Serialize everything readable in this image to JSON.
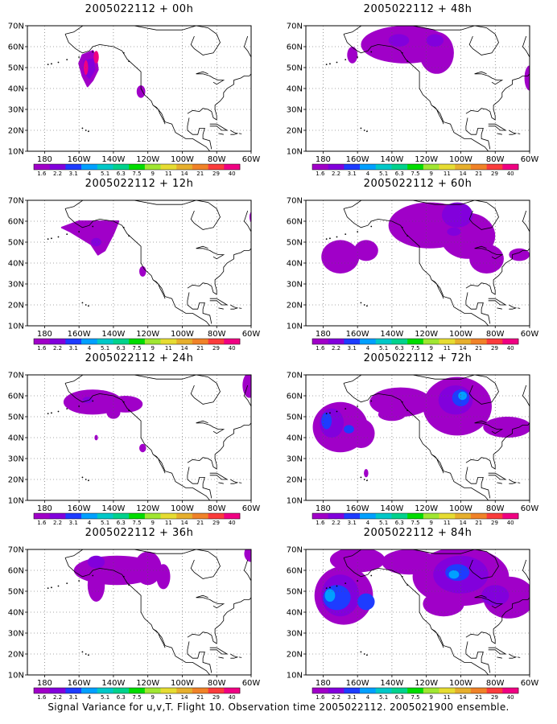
{
  "caption": "Signal Variance for u,v,T. Flight 10. Observation time 2005022112. 2005021900 ensemble.",
  "colorbar": {
    "labels": [
      "1.6",
      "2.2",
      "3.1",
      "4",
      "5.1",
      "6.3",
      "7.5",
      "9",
      "11",
      "14",
      "21",
      "29",
      "40"
    ],
    "colors": [
      "#a000c8",
      "#8200dc",
      "#1e3cff",
      "#00a0ff",
      "#00c8c8",
      "#00d28c",
      "#00dc00",
      "#a0e632",
      "#e6dc32",
      "#e6af2d",
      "#f08228",
      "#fa3c3c",
      "#f00082"
    ]
  },
  "axes": {
    "lat_labels": [
      "70N",
      "60N",
      "50N",
      "40N",
      "30N",
      "20N",
      "10N"
    ],
    "lon_labels": [
      "180",
      "160W",
      "140W",
      "120W",
      "100W",
      "80W",
      "60W"
    ]
  },
  "panels": [
    {
      "title": "2005022112 + 00h",
      "blobs": [
        {
          "shape": "poly",
          "color": "#a000c8",
          "pts": [
            [
              -158,
              56
            ],
            [
              -152,
              58
            ],
            [
              -150,
              55
            ],
            [
              -149,
              49
            ],
            [
              -152,
              44
            ],
            [
              -155,
              41
            ],
            [
              -158,
              46
            ],
            [
              -160,
              52
            ]
          ]
        },
        {
          "shape": "poly",
          "color": "#8200dc",
          "pts": [
            [
              -157,
              53
            ],
            [
              -152,
              54
            ],
            [
              -151,
              49
            ],
            [
              -154,
              45
            ],
            [
              -157,
              48
            ]
          ]
        },
        {
          "shape": "ell",
          "color": "#a000c8",
          "lon": -124,
          "lat": 38.5,
          "rx": 2.5,
          "ry": 3
        },
        {
          "shape": "ell",
          "color": "#f00082",
          "lon": -150,
          "lat": 55,
          "rx": 1.5,
          "ry": 3
        },
        {
          "shape": "ell",
          "color": "#f00082",
          "lon": -156,
          "lat": 50,
          "rx": 1.3,
          "ry": 3.5
        }
      ]
    },
    {
      "title": "2005022112 + 48h",
      "blobs": [
        {
          "shape": "ell",
          "color": "#a000c8",
          "lon": -132,
          "lat": 61,
          "rx": 26,
          "ry": 9
        },
        {
          "shape": "ell",
          "color": "#a000c8",
          "lon": -114,
          "lat": 57,
          "rx": 10,
          "ry": 10
        },
        {
          "shape": "ell",
          "color": "#a000c8",
          "lon": -163,
          "lat": 56,
          "rx": 3,
          "ry": 4
        },
        {
          "shape": "ell",
          "color": "#a000c8",
          "lon": -60,
          "lat": 45,
          "rx": 3,
          "ry": 6
        },
        {
          "shape": "ell",
          "color": "#8200dc",
          "lon": -136,
          "lat": 63,
          "rx": 6,
          "ry": 3
        },
        {
          "shape": "ell",
          "color": "#8200dc",
          "lon": -115,
          "lat": 63,
          "rx": 5,
          "ry": 3
        }
      ]
    },
    {
      "title": "2005022112 + 12h",
      "blobs": [
        {
          "shape": "poly",
          "color": "#a000c8",
          "pts": [
            [
              -170,
              57
            ],
            [
              -160,
              60
            ],
            [
              -150,
              60
            ],
            [
              -137,
              60
            ],
            [
              -140,
              54
            ],
            [
              -145,
              46
            ],
            [
              -149,
              44
            ],
            [
              -153,
              49
            ],
            [
              -165,
              55
            ]
          ]
        },
        {
          "shape": "ell",
          "color": "#8200dc",
          "lon": -150,
          "lat": 50,
          "rx": 3,
          "ry": 2
        },
        {
          "shape": "ell",
          "color": "#a000c8",
          "lon": -123,
          "lat": 36,
          "rx": 2,
          "ry": 2.5
        },
        {
          "shape": "ell",
          "color": "#a000c8",
          "lon": -59,
          "lat": 62,
          "rx": 2,
          "ry": 3
        }
      ]
    },
    {
      "title": "2005022112 + 60h",
      "blobs": [
        {
          "shape": "ell",
          "color": "#a000c8",
          "lon": -118,
          "lat": 58,
          "rx": 24,
          "ry": 11
        },
        {
          "shape": "ell",
          "color": "#a000c8",
          "lon": -96,
          "lat": 53,
          "rx": 16,
          "ry": 11
        },
        {
          "shape": "ell",
          "color": "#a000c8",
          "lon": -85,
          "lat": 42,
          "rx": 10,
          "ry": 7
        },
        {
          "shape": "ell",
          "color": "#a000c8",
          "lon": -170,
          "lat": 43,
          "rx": 11,
          "ry": 8
        },
        {
          "shape": "ell",
          "color": "#a000c8",
          "lon": -155,
          "lat": 46,
          "rx": 7,
          "ry": 5
        },
        {
          "shape": "ell",
          "color": "#a000c8",
          "lon": -66,
          "lat": 44,
          "rx": 6,
          "ry": 3
        },
        {
          "shape": "ell",
          "color": "#8200dc",
          "lon": -102,
          "lat": 63,
          "rx": 9,
          "ry": 6
        },
        {
          "shape": "ell",
          "color": "#8200dc",
          "lon": -104,
          "lat": 55,
          "rx": 4,
          "ry": 2
        }
      ]
    },
    {
      "title": "2005022112 + 24h",
      "blobs": [
        {
          "shape": "ell",
          "color": "#a000c8",
          "lon": -152,
          "lat": 57,
          "rx": 17,
          "ry": 6
        },
        {
          "shape": "ell",
          "color": "#a000c8",
          "lon": -133,
          "lat": 56,
          "rx": 10,
          "ry": 4
        },
        {
          "shape": "ell",
          "color": "#a000c8",
          "lon": -140,
          "lat": 52,
          "rx": 4,
          "ry": 3
        },
        {
          "shape": "ell",
          "color": "#a000c8",
          "lon": -150,
          "lat": 40,
          "rx": 1,
          "ry": 1.3
        },
        {
          "shape": "ell",
          "color": "#a000c8",
          "lon": -123,
          "lat": 35,
          "rx": 2,
          "ry": 2
        },
        {
          "shape": "ell",
          "color": "#a000c8",
          "lon": -61,
          "lat": 65,
          "rx": 4,
          "ry": 6
        },
        {
          "shape": "ell",
          "color": "#8200dc",
          "lon": -155,
          "lat": 58,
          "rx": 3,
          "ry": 1.5
        }
      ]
    },
    {
      "title": "2005022112 + 72h",
      "blobs": [
        {
          "shape": "ell",
          "color": "#a000c8",
          "lon": -102,
          "lat": 55,
          "rx": 20,
          "ry": 14
        },
        {
          "shape": "ell",
          "color": "#a000c8",
          "lon": -135,
          "lat": 57,
          "rx": 18,
          "ry": 7
        },
        {
          "shape": "ell",
          "color": "#a000c8",
          "lon": -170,
          "lat": 45,
          "rx": 16,
          "ry": 12
        },
        {
          "shape": "ell",
          "color": "#a000c8",
          "lon": -158,
          "lat": 42,
          "rx": 8,
          "ry": 7
        },
        {
          "shape": "ell",
          "color": "#a000c8",
          "lon": -73,
          "lat": 45,
          "rx": 14,
          "ry": 5
        },
        {
          "shape": "ell",
          "color": "#a000c8",
          "lon": -140,
          "lat": 51,
          "rx": 8,
          "ry": 3
        },
        {
          "shape": "ell",
          "color": "#a000c8",
          "lon": -155,
          "lat": 23,
          "rx": 1.3,
          "ry": 2
        },
        {
          "shape": "ell",
          "color": "#8200dc",
          "lon": -103,
          "lat": 58,
          "rx": 10,
          "ry": 7
        },
        {
          "shape": "ell",
          "color": "#8200dc",
          "lon": -175,
          "lat": 47,
          "rx": 7,
          "ry": 7
        },
        {
          "shape": "ell",
          "color": "#1e3cff",
          "lon": -100,
          "lat": 59,
          "rx": 5,
          "ry": 4
        },
        {
          "shape": "ell",
          "color": "#1e3cff",
          "lon": -178,
          "lat": 48,
          "rx": 3,
          "ry": 4
        },
        {
          "shape": "ell",
          "color": "#1e3cff",
          "lon": -165,
          "lat": 44,
          "rx": 3,
          "ry": 2
        },
        {
          "shape": "ell",
          "color": "#00a0ff",
          "lon": -99,
          "lat": 60,
          "rx": 2.5,
          "ry": 2
        }
      ]
    },
    {
      "title": "2005022112 + 36h",
      "blobs": [
        {
          "shape": "ell",
          "color": "#a000c8",
          "lon": -138,
          "lat": 60,
          "rx": 25,
          "ry": 7
        },
        {
          "shape": "ell",
          "color": "#a000c8",
          "lon": -150,
          "lat": 53,
          "rx": 5,
          "ry": 8
        },
        {
          "shape": "ell",
          "color": "#a000c8",
          "lon": -120,
          "lat": 61,
          "rx": 8,
          "ry": 8
        },
        {
          "shape": "ell",
          "color": "#a000c8",
          "lon": -111,
          "lat": 57,
          "rx": 4,
          "ry": 6
        },
        {
          "shape": "ell",
          "color": "#a000c8",
          "lon": -60,
          "lat": 68,
          "rx": 4,
          "ry": 4
        },
        {
          "shape": "ell",
          "color": "#8200dc",
          "lon": -150,
          "lat": 64,
          "rx": 5,
          "ry": 3
        }
      ]
    },
    {
      "title": "2005022112 + 84h",
      "blobs": [
        {
          "shape": "ell",
          "color": "#a000c8",
          "lon": -100,
          "lat": 57,
          "rx": 28,
          "ry": 14
        },
        {
          "shape": "ell",
          "color": "#a000c8",
          "lon": -130,
          "lat": 64,
          "rx": 16,
          "ry": 6
        },
        {
          "shape": "ell",
          "color": "#a000c8",
          "lon": -168,
          "lat": 48,
          "rx": 17,
          "ry": 14
        },
        {
          "shape": "ell",
          "color": "#a000c8",
          "lon": -72,
          "lat": 47,
          "rx": 15,
          "ry": 10
        },
        {
          "shape": "ell",
          "color": "#a000c8",
          "lon": -160,
          "lat": 65,
          "rx": 16,
          "ry": 6
        },
        {
          "shape": "ell",
          "color": "#a000c8",
          "lon": -110,
          "lat": 44,
          "rx": 12,
          "ry": 6
        },
        {
          "shape": "ell",
          "color": "#8200dc",
          "lon": -100,
          "lat": 58,
          "rx": 16,
          "ry": 9
        },
        {
          "shape": "ell",
          "color": "#8200dc",
          "lon": -170,
          "lat": 48,
          "rx": 11,
          "ry": 10
        },
        {
          "shape": "ell",
          "color": "#8200dc",
          "lon": -80,
          "lat": 48,
          "rx": 8,
          "ry": 5
        },
        {
          "shape": "ell",
          "color": "#1e3cff",
          "lon": -172,
          "lat": 47,
          "rx": 8,
          "ry": 6
        },
        {
          "shape": "ell",
          "color": "#1e3cff",
          "lon": -155,
          "lat": 45,
          "rx": 5,
          "ry": 4
        },
        {
          "shape": "ell",
          "color": "#1e3cff",
          "lon": -102,
          "lat": 59,
          "rx": 7,
          "ry": 4
        },
        {
          "shape": "ell",
          "color": "#00a0ff",
          "lon": -176,
          "lat": 48,
          "rx": 3,
          "ry": 3
        },
        {
          "shape": "ell",
          "color": "#00a0ff",
          "lon": -104,
          "lat": 58,
          "rx": 3,
          "ry": 2
        }
      ]
    }
  ]
}
